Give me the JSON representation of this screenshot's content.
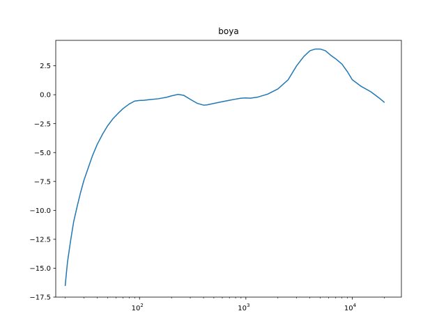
{
  "chart_data": {
    "type": "line",
    "title": "boya",
    "xlabel": "",
    "ylabel": "",
    "xscale": "log",
    "xlim": [
      16.3,
      29000
    ],
    "ylim": [
      -17.5,
      4.7
    ],
    "grid": false,
    "legend": "none",
    "x_ticks": [
      {
        "value": 100,
        "base": "10",
        "exp": "2"
      },
      {
        "value": 1000,
        "base": "10",
        "exp": "3"
      },
      {
        "value": 10000,
        "base": "10",
        "exp": "4"
      }
    ],
    "y_ticks": [
      {
        "value": 2.5,
        "label": "2.5"
      },
      {
        "value": 0,
        "label": "0.0"
      },
      {
        "value": -2.5,
        "label": "−2.5"
      },
      {
        "value": -5,
        "label": "−5.0"
      },
      {
        "value": -7.5,
        "label": "−7.5"
      },
      {
        "value": -10,
        "label": "−10.0"
      },
      {
        "value": -12.5,
        "label": "−12.5"
      },
      {
        "value": -15,
        "label": "−15.0"
      },
      {
        "value": -17.5,
        "label": "−17.5"
      }
    ],
    "series": [
      {
        "color": "#1f77b4",
        "x": [
          20,
          21,
          22.5,
          24,
          26,
          28,
          30,
          33,
          36,
          40,
          45,
          50,
          56,
          63,
          70,
          80,
          90,
          100,
          110,
          125,
          150,
          180,
          200,
          230,
          260,
          300,
          350,
          400,
          430,
          500,
          600,
          700,
          800,
          900,
          1000,
          1100,
          1300,
          1600,
          2000,
          2500,
          3000,
          3500,
          4000,
          4500,
          5000,
          5600,
          6300,
          7000,
          8000,
          9000,
          10000,
          12000,
          15000,
          18000,
          20000
        ],
        "y": [
          -16.5,
          -14.5,
          -12.6,
          -11.0,
          -9.6,
          -8.4,
          -7.4,
          -6.3,
          -5.3,
          -4.3,
          -3.4,
          -2.7,
          -2.1,
          -1.6,
          -1.2,
          -0.8,
          -0.55,
          -0.5,
          -0.48,
          -0.42,
          -0.35,
          -0.22,
          -0.1,
          0.03,
          -0.05,
          -0.4,
          -0.75,
          -0.9,
          -0.88,
          -0.75,
          -0.6,
          -0.48,
          -0.38,
          -0.3,
          -0.28,
          -0.3,
          -0.2,
          0.05,
          0.5,
          1.3,
          2.5,
          3.3,
          3.8,
          3.95,
          3.95,
          3.8,
          3.4,
          3.1,
          2.65,
          2.0,
          1.3,
          0.75,
          0.25,
          -0.3,
          -0.65
        ]
      }
    ]
  }
}
